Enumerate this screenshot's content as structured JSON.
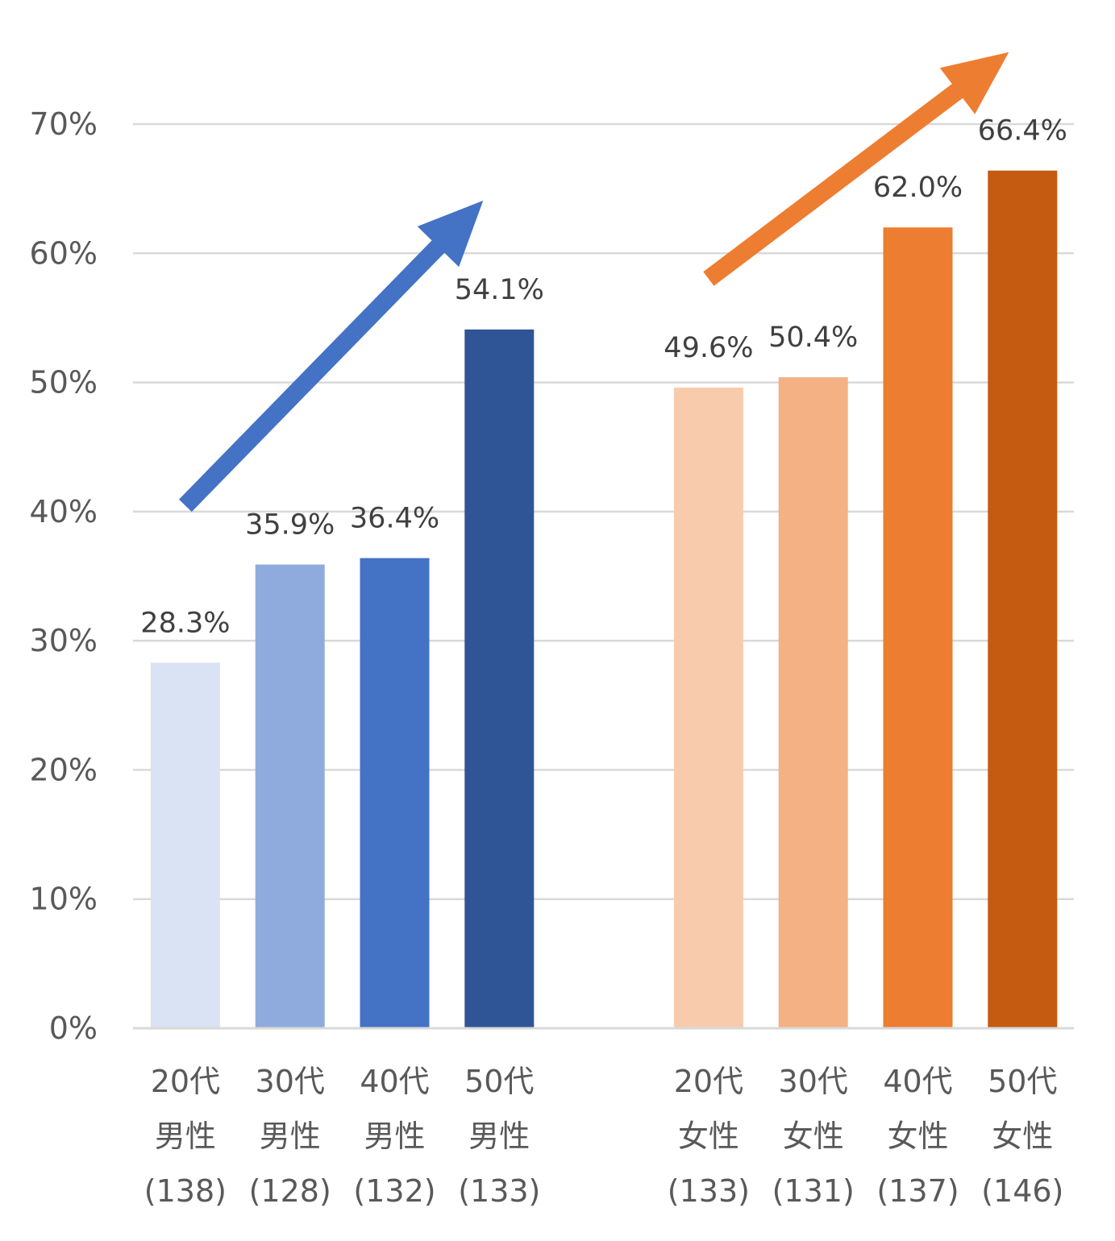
{
  "chart_data": {
    "type": "bar",
    "title": "",
    "xlabel": "",
    "ylabel": "",
    "ylim": [
      0,
      70
    ],
    "yticks": [
      "0%",
      "10%",
      "20%",
      "30%",
      "40%",
      "50%",
      "60%",
      "70%"
    ],
    "grid": true,
    "legend": "none",
    "categories": [
      {
        "lines": [
          "20代",
          "男性",
          "(138)"
        ],
        "value": 28.3,
        "label": "28.3%",
        "color": "#dae3f3"
      },
      {
        "lines": [
          "30代",
          "男性",
          "(128)"
        ],
        "value": 35.9,
        "label": "35.9%",
        "color": "#8faadc"
      },
      {
        "lines": [
          "40代",
          "男性",
          "(132)"
        ],
        "value": 36.4,
        "label": "36.4%",
        "color": "#4472c4"
      },
      {
        "lines": [
          "50代",
          "男性",
          "(133)"
        ],
        "value": 54.1,
        "label": "54.1%",
        "color": "#2f5597"
      },
      {
        "gap": true
      },
      {
        "lines": [
          "20代",
          "女性",
          "(133)"
        ],
        "value": 49.6,
        "label": "49.6%",
        "color": "#f8cbad"
      },
      {
        "lines": [
          "30代",
          "女性",
          "(131)"
        ],
        "value": 50.4,
        "label": "50.4%",
        "color": "#f4b183"
      },
      {
        "lines": [
          "40代",
          "女性",
          "(137)"
        ],
        "value": 62.0,
        "label": "62.0%",
        "color": "#ed7d31"
      },
      {
        "lines": [
          "50代",
          "女性",
          "(146)"
        ],
        "value": 66.4,
        "label": "66.4%",
        "color": "#c55a11"
      }
    ],
    "trend_arrows": [
      {
        "name": "male-trend-arrow",
        "color": "#4472c4"
      },
      {
        "name": "female-trend-arrow",
        "color": "#ed7d31"
      }
    ]
  }
}
